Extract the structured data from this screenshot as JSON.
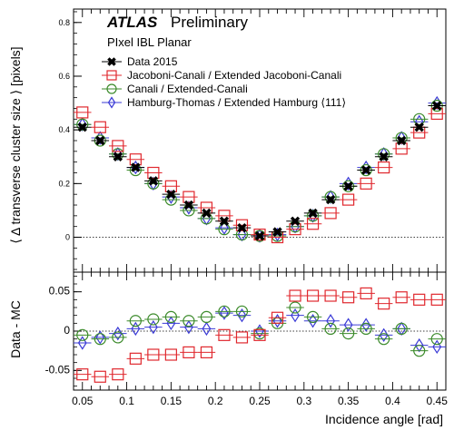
{
  "chart_data": [
    {
      "type": "scatter",
      "panel": "top",
      "ylabel": "⟨ Δ transverse cluster size ⟩ [pixels]",
      "ylim": [
        -0.13,
        0.85
      ],
      "yticks": [
        0,
        0.2,
        0.4,
        0.6,
        0.8
      ],
      "ytick_labels": [
        "0",
        "0.2",
        "0.4",
        "0.6",
        "0.8"
      ],
      "xlim": [
        0.04,
        0.46
      ],
      "reference_line": 0,
      "x": [
        0.05,
        0.07,
        0.09,
        0.11,
        0.13,
        0.15,
        0.17,
        0.19,
        0.21,
        0.23,
        0.25,
        0.27,
        0.29,
        0.31,
        0.33,
        0.35,
        0.37,
        0.39,
        0.41,
        0.43,
        0.45
      ],
      "series": [
        {
          "name": "Data 2015",
          "marker": "x",
          "color": "#000000",
          "values": [
            0.41,
            0.36,
            0.3,
            0.26,
            0.21,
            0.16,
            0.12,
            0.09,
            0.06,
            0.035,
            0.005,
            0.02,
            0.06,
            0.09,
            0.14,
            0.19,
            0.25,
            0.3,
            0.36,
            0.41,
            0.49
          ]
        },
        {
          "name": "Jacoboni-Canali / Extended Jacoboni-Canali",
          "marker": "square",
          "color": "#e0282e",
          "values": [
            0.465,
            0.41,
            0.34,
            0.29,
            0.24,
            0.19,
            0.15,
            0.11,
            0.08,
            0.045,
            0.01,
            0.0,
            0.03,
            0.05,
            0.09,
            0.14,
            0.2,
            0.26,
            0.33,
            0.39,
            0.46
          ]
        },
        {
          "name": "Canali / Extended-Canali",
          "marker": "circle",
          "color": "#3b8a2a",
          "values": [
            0.42,
            0.36,
            0.31,
            0.25,
            0.2,
            0.14,
            0.1,
            0.07,
            0.03,
            0.01,
            0.005,
            0.005,
            0.04,
            0.08,
            0.15,
            0.19,
            0.25,
            0.31,
            0.37,
            0.44,
            0.49
          ]
        },
        {
          "name": "Hamburg-Thomas / Extended Hamburg ⟨111⟩",
          "marker": "diamond",
          "color": "#3a3ad6",
          "values": [
            0.42,
            0.37,
            0.31,
            0.26,
            0.2,
            0.15,
            0.11,
            0.07,
            0.035,
            0.01,
            0.005,
            0.01,
            0.04,
            0.08,
            0.15,
            0.2,
            0.26,
            0.31,
            0.37,
            0.43,
            0.5
          ]
        }
      ]
    },
    {
      "type": "scatter",
      "panel": "bottom",
      "xlabel": "Incidence angle [rad]",
      "ylabel": "Data - MC",
      "ylim": [
        -0.075,
        0.075
      ],
      "yticks": [
        -0.05,
        0,
        0.05
      ],
      "ytick_labels": [
        "-0.05",
        "0",
        "0.05"
      ],
      "xlim": [
        0.04,
        0.46
      ],
      "xticks": [
        0.05,
        0.1,
        0.15,
        0.2,
        0.25,
        0.3,
        0.35,
        0.4,
        0.45
      ],
      "xtick_labels": [
        "0.05",
        "0.1",
        "0.15",
        "0.2",
        "0.25",
        "0.3",
        "0.35",
        "0.4",
        "0.45"
      ],
      "reference_line": 0,
      "x": [
        0.05,
        0.07,
        0.09,
        0.11,
        0.13,
        0.15,
        0.17,
        0.19,
        0.21,
        0.23,
        0.25,
        0.27,
        0.29,
        0.31,
        0.33,
        0.35,
        0.37,
        0.39,
        0.41,
        0.43,
        0.45
      ],
      "series": [
        {
          "name": "Jacoboni-Canali / Extended Jacoboni-Canali",
          "marker": "square",
          "color": "#e0282e",
          "values": [
            -0.055,
            -0.058,
            -0.055,
            -0.035,
            -0.03,
            -0.03,
            -0.027,
            -0.027,
            -0.005,
            -0.008,
            -0.005,
            0.017,
            0.045,
            0.045,
            0.045,
            0.043,
            0.048,
            0.035,
            0.043,
            0.04,
            0.04
          ]
        },
        {
          "name": "Canali / Extended-Canali",
          "marker": "circle",
          "color": "#3b8a2a",
          "values": [
            -0.005,
            -0.01,
            -0.008,
            0.013,
            0.015,
            0.018,
            0.013,
            0.018,
            0.025,
            0.025,
            -0.003,
            0.01,
            0.03,
            0.018,
            0.003,
            -0.003,
            0.003,
            -0.01,
            0.003,
            -0.025,
            -0.01
          ]
        },
        {
          "name": "Hamburg-Thomas / Extended Hamburg ⟨111⟩",
          "marker": "diamond",
          "color": "#3a3ad6",
          "values": [
            -0.015,
            -0.008,
            -0.003,
            0.003,
            0.005,
            0.01,
            0.005,
            0.003,
            0.023,
            0.02,
            0.0,
            0.013,
            0.02,
            0.013,
            0.013,
            0.008,
            0.008,
            -0.005,
            0.003,
            -0.018,
            -0.02
          ]
        }
      ]
    }
  ],
  "annotations": {
    "atlas": "ATLAS",
    "preliminary": "Preliminary",
    "subtitle": "PIxel IBL Planar"
  },
  "legend": {
    "position": "top-center",
    "entries": [
      {
        "label": "Data 2015",
        "marker": "x",
        "color": "#000000"
      },
      {
        "label": "Jacoboni-Canali / Extended Jacoboni-Canali",
        "marker": "square",
        "color": "#e0282e"
      },
      {
        "label": "Canali / Extended-Canali",
        "marker": "circle",
        "color": "#3b8a2a"
      },
      {
        "label": "Hamburg-Thomas / Extended Hamburg ⟨111⟩",
        "marker": "diamond",
        "color": "#3a3ad6"
      }
    ]
  }
}
